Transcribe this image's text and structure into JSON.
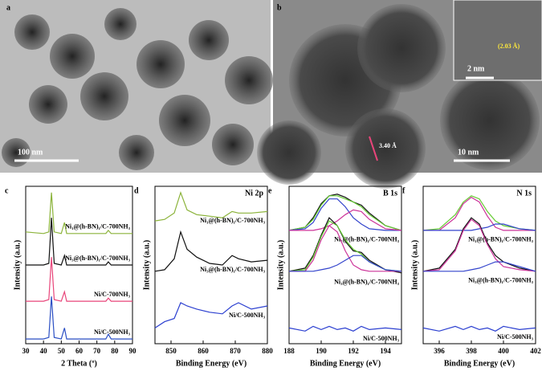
{
  "images": [
    {
      "label": "a",
      "scale_bar": "100 nm"
    },
    {
      "label": "b",
      "scale_bar": "10 nm",
      "inset_scale_bar": "2 nm",
      "inset_spacing": "(2.03 Å)",
      "spacing": "3.40 Å"
    }
  ],
  "chart_data": [
    {
      "type": "line",
      "panel": "c",
      "xlabel": "2 Theta (º)",
      "ylabel": "Intensity (a.u.)",
      "xlim": [
        30,
        90
      ],
      "xticks": [
        30,
        40,
        50,
        60,
        70,
        80,
        90
      ],
      "ylim": [
        0,
        10
      ],
      "x": [
        30,
        40,
        43,
        44.5,
        46,
        50,
        51.8,
        53,
        60,
        75,
        76.4,
        78,
        90
      ],
      "series": [
        {
          "name": "Ni₁@(h-BN)₁/C-700NH₃",
          "color": "#8bb33a",
          "values": [
            7.1,
            7.0,
            7.1,
            9.6,
            7.1,
            7.0,
            7.7,
            7.0,
            7.0,
            7.0,
            7.2,
            7.0,
            7.0
          ]
        },
        {
          "name": "Ni₃@(h-BN)₁/C-700NH₃",
          "color": "#111111",
          "values": [
            5.0,
            5.0,
            5.1,
            8.0,
            5.1,
            5.0,
            5.6,
            5.0,
            5.0,
            5.0,
            5.2,
            5.0,
            5.0
          ]
        },
        {
          "name": "Ni/C-700NH₃",
          "color": "#e8457a",
          "values": [
            2.7,
            2.7,
            2.8,
            5.5,
            2.8,
            2.7,
            3.3,
            2.7,
            2.7,
            2.7,
            2.9,
            2.7,
            2.7
          ]
        },
        {
          "name": "Ni/C-500NH₃",
          "color": "#2b4fc4",
          "values": [
            0.3,
            0.3,
            0.4,
            3.0,
            0.4,
            0.3,
            1.0,
            0.3,
            0.3,
            0.3,
            0.6,
            0.3,
            0.3
          ]
        }
      ]
    },
    {
      "type": "line",
      "panel": "d",
      "title": "Ni 2p",
      "xlabel": "Binding Energy (eV)",
      "ylabel": "Intensity (a.u.)",
      "xlim": [
        845,
        880
      ],
      "xticks": [
        850,
        860,
        870,
        880
      ],
      "ylim": [
        0,
        10
      ],
      "x": [
        845,
        848,
        851,
        853,
        855,
        858,
        862,
        866,
        869,
        871,
        875,
        880
      ],
      "series": [
        {
          "name": "Ni₁@(h-BN)₁/C-700NH₃",
          "color": "#8bb33a",
          "values": [
            7.8,
            7.9,
            8.3,
            9.6,
            8.5,
            8.2,
            8.1,
            8.0,
            8.4,
            8.3,
            8.3,
            8.4
          ]
        },
        {
          "name": "Ni₃@(h-BN)₁/C-700NH₃",
          "color": "#111111",
          "values": [
            4.6,
            4.7,
            5.4,
            7.1,
            6.0,
            5.5,
            5.1,
            5.0,
            5.6,
            5.4,
            5.2,
            5.3
          ]
        },
        {
          "name": "Ni/C-500NH₃",
          "color": "#2b3fd0",
          "values": [
            1.0,
            1.4,
            1.6,
            2.6,
            2.4,
            2.2,
            2.0,
            1.9,
            2.4,
            2.6,
            2.2,
            2.4
          ]
        }
      ]
    },
    {
      "type": "line",
      "panel": "e",
      "title": "B 1s",
      "xlabel": "Binding Energy (eV)",
      "ylabel": "Intensity (a.u.)",
      "xlim": [
        188,
        195
      ],
      "xticks": [
        188,
        190,
        192,
        194
      ],
      "ylim": [
        0,
        10
      ],
      "x": [
        188,
        189,
        189.5,
        190,
        190.5,
        191,
        191.5,
        192,
        192.5,
        193,
        194,
        195
      ],
      "series": [
        {
          "name": "Ni₁@(h-BN)₁/C-700NH₃",
          "color": "#111111",
          "values": [
            7.2,
            7.4,
            8.0,
            8.9,
            9.4,
            9.5,
            9.3,
            9.0,
            8.8,
            8.3,
            7.5,
            7.2
          ]
        },
        {
          "color": "#66cc33",
          "values": [
            7.2,
            7.4,
            7.9,
            8.8,
            9.4,
            9.4,
            9.2,
            9.0,
            8.7,
            8.2,
            7.5,
            7.2
          ]
        },
        {
          "color": "#3344cc",
          "values": [
            7.2,
            7.3,
            7.7,
            8.6,
            9.2,
            9.2,
            8.7,
            8.0,
            7.6,
            7.3,
            7.2,
            7.2
          ]
        },
        {
          "color": "#cc3399",
          "values": [
            7.2,
            7.2,
            7.2,
            7.3,
            7.5,
            7.8,
            8.2,
            8.5,
            8.4,
            7.9,
            7.3,
            7.2
          ]
        },
        {
          "name": "Ni₃@(h-BN)₁/C-700NH₃",
          "color": "#111111",
          "values": [
            4.6,
            4.8,
            5.6,
            6.9,
            8.0,
            7.5,
            6.5,
            5.9,
            5.8,
            5.3,
            4.7,
            4.5
          ]
        },
        {
          "color": "#66cc33",
          "values": [
            4.6,
            4.7,
            5.5,
            6.8,
            7.8,
            7.5,
            6.6,
            6.0,
            5.7,
            5.2,
            4.7,
            4.6
          ]
        },
        {
          "color": "#cc3399",
          "values": [
            4.6,
            4.6,
            5.3,
            6.6,
            7.5,
            7.1,
            5.9,
            5.0,
            4.7,
            4.6,
            4.6,
            4.6
          ]
        },
        {
          "color": "#3344cc",
          "values": [
            4.6,
            4.6,
            4.6,
            4.7,
            4.8,
            5.0,
            5.3,
            5.6,
            5.6,
            5.2,
            4.7,
            4.6
          ]
        },
        {
          "name": "Ni/C-500NH₃",
          "color": "#2b3fd0",
          "values": [
            1.0,
            0.8,
            1.1,
            0.9,
            1.1,
            0.9,
            1.0,
            0.8,
            1.1,
            0.9,
            1.0,
            0.9
          ]
        }
      ]
    },
    {
      "type": "line",
      "panel": "f",
      "title": "N 1s",
      "xlabel": "Binding Energy (eV)",
      "ylabel": "Intensity (a.u.)",
      "xlim": [
        395,
        402
      ],
      "xticks": [
        396,
        398,
        400,
        402
      ],
      "ylim": [
        0,
        10
      ],
      "x": [
        395,
        396,
        397,
        397.5,
        398,
        398.5,
        399,
        399.5,
        400,
        401,
        402
      ],
      "series": [
        {
          "name": "Ni₁@(h-BN)₁/C-700NH₃",
          "color": "#66cc33",
          "values": [
            7.2,
            7.3,
            8.2,
            9.0,
            9.4,
            9.2,
            8.4,
            7.8,
            7.5,
            7.3,
            7.2
          ]
        },
        {
          "color": "#cc3399",
          "values": [
            7.2,
            7.2,
            8.0,
            8.9,
            9.3,
            9.0,
            8.1,
            7.4,
            7.2,
            7.2,
            7.2
          ]
        },
        {
          "color": "#3344cc",
          "values": [
            7.2,
            7.2,
            7.2,
            7.2,
            7.2,
            7.3,
            7.4,
            7.6,
            7.6,
            7.3,
            7.2
          ]
        },
        {
          "name": "Ni₃@(h-BN)₁/C-700NH₃",
          "color": "#111111",
          "values": [
            4.6,
            4.8,
            6.0,
            7.3,
            8.0,
            7.6,
            6.4,
            5.6,
            5.2,
            4.8,
            4.6
          ]
        },
        {
          "color": "#cc3399",
          "values": [
            4.6,
            4.7,
            5.9,
            7.2,
            7.9,
            7.5,
            6.3,
            5.4,
            4.9,
            4.7,
            4.6
          ]
        },
        {
          "color": "#3344cc",
          "values": [
            4.6,
            4.6,
            4.6,
            4.6,
            4.7,
            4.8,
            5.0,
            5.2,
            5.2,
            4.9,
            4.6
          ]
        },
        {
          "name": "Ni/C-500NH₃",
          "color": "#2b3fd0",
          "values": [
            1.0,
            0.8,
            1.1,
            0.9,
            1.1,
            0.9,
            1.0,
            0.8,
            1.1,
            0.9,
            1.0
          ]
        }
      ]
    }
  ]
}
